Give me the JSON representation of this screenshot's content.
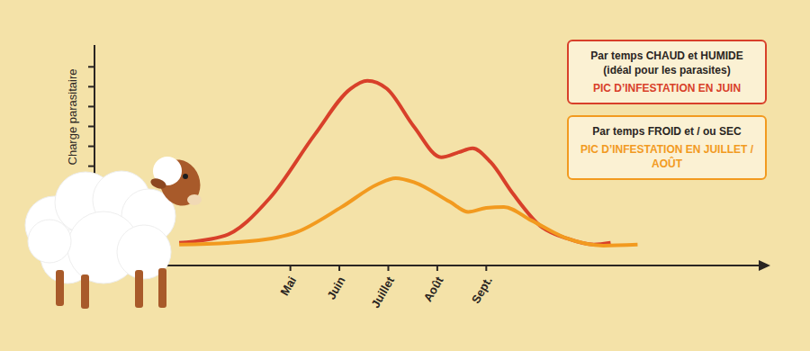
{
  "chart_data": {
    "type": "line",
    "y_label": "Charge parasitaire",
    "xlim": [
      1,
      14.6
    ],
    "xticks": [
      {
        "value": 5,
        "label": "Mai"
      },
      {
        "value": 6,
        "label": "Juin"
      },
      {
        "value": 7,
        "label": "Juillet"
      },
      {
        "value": 8,
        "label": "Août"
      },
      {
        "value": 9,
        "label": "Sept."
      }
    ],
    "ylim": [
      0,
      11.1
    ],
    "yticks": [
      1,
      2,
      3,
      4,
      5,
      6,
      7,
      8,
      9,
      10
    ],
    "tick_labels": "x",
    "grid": false,
    "legend": "upper right",
    "series": [
      {
        "name": "Par temps CHAUD et HUMIDE (idéal pour les parasites)",
        "annotation": "PIC D’INFESTATION EN JUIN",
        "color": "#d8402a",
        "x": [
          2.73,
          3.66,
          4.58,
          5.5,
          6.23,
          6.57,
          6.97,
          7.52,
          8.08,
          8.44,
          8.72,
          9.09,
          9.55,
          10.1,
          10.65,
          11.2,
          11.54
        ],
        "values": [
          1.14,
          1.5,
          3.4,
          6.6,
          8.9,
          9.3,
          8.9,
          7.0,
          5.45,
          5.7,
          5.9,
          5.2,
          3.6,
          2.0,
          1.36,
          1.05,
          1.14
        ]
      },
      {
        "name": "Par temps FROID et / ou SEC",
        "annotation": "PIC D’INFESTATION EN JUILLET / AOÛT",
        "color": "#f29a1f",
        "x": [
          2.73,
          4.21,
          5.13,
          6.05,
          6.79,
          7.15,
          7.52,
          8.26,
          8.63,
          9.0,
          9.36,
          9.92,
          10.65,
          11.39,
          12.09
        ],
        "values": [
          1.05,
          1.23,
          1.68,
          2.95,
          4.1,
          4.4,
          4.2,
          3.2,
          2.7,
          2.9,
          2.95,
          2.27,
          1.36,
          1.0,
          1.05
        ]
      }
    ]
  }
}
